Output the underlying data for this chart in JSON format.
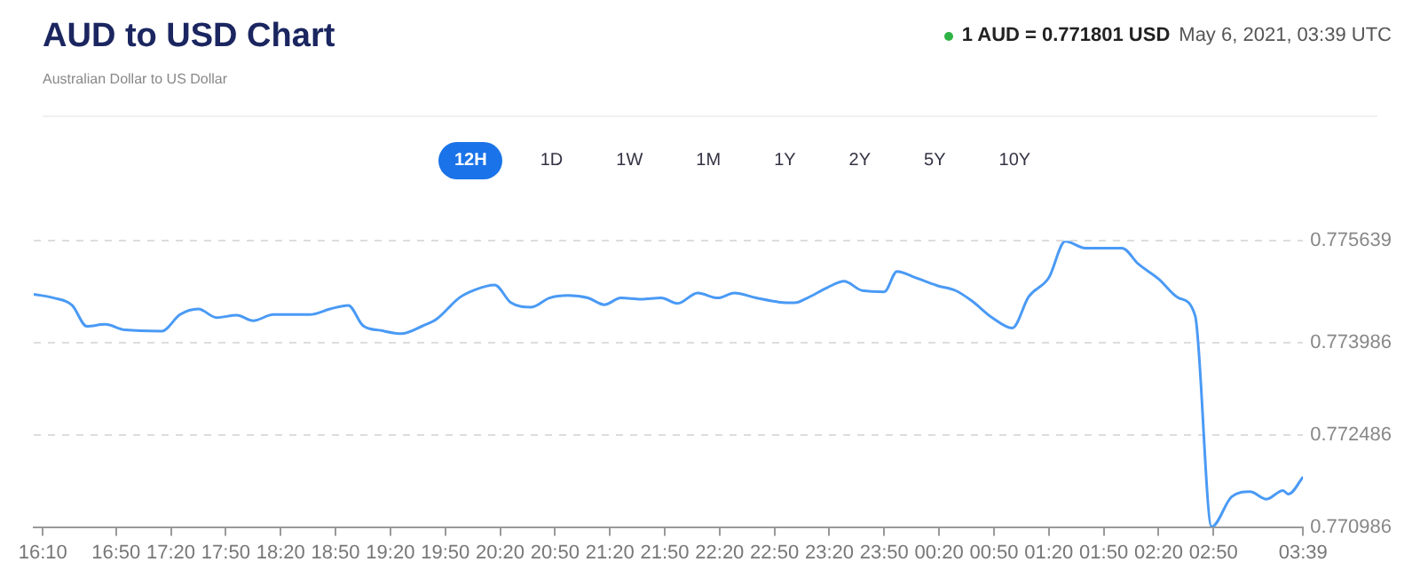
{
  "chart_data": {
    "type": "line",
    "title": "AUD to USD Chart",
    "subtitle": "Australian Dollar to US Dollar",
    "annotations": [
      "1 AUD = 0.771801 USD",
      "May 6, 2021, 03:39 UTC",
      "12H",
      "1D",
      "1W",
      "1M",
      "1Y",
      "2Y",
      "5Y",
      "10Y"
    ],
    "x": [
      "2021-05-05T16:05",
      "2021-05-05T16:16",
      "2021-05-05T16:26",
      "2021-05-05T16:34",
      "2021-05-05T16:44",
      "2021-05-05T16:55",
      "2021-05-05T17:15",
      "2021-05-05T17:25",
      "2021-05-05T17:35",
      "2021-05-05T17:45",
      "2021-05-05T17:56",
      "2021-05-05T18:05",
      "2021-05-05T18:16",
      "2021-05-05T18:36",
      "2021-05-05T18:47",
      "2021-05-05T18:57",
      "2021-05-05T19:05",
      "2021-05-05T19:15",
      "2021-05-05T19:26",
      "2021-05-05T19:38",
      "2021-05-05T19:45",
      "2021-05-05T19:58",
      "2021-05-05T20:06",
      "2021-05-05T20:17",
      "2021-05-05T20:26",
      "2021-05-05T20:37",
      "2021-05-05T20:47",
      "2021-05-05T20:57",
      "2021-05-05T21:08",
      "2021-05-05T21:17",
      "2021-05-05T21:26",
      "2021-05-05T21:37",
      "2021-05-05T21:48",
      "2021-05-05T21:57",
      "2021-05-05T22:08",
      "2021-05-05T22:19",
      "2021-05-05T22:28",
      "2021-05-05T22:40",
      "2021-05-05T22:53",
      "2021-05-05T23:01",
      "2021-05-05T23:08",
      "2021-05-05T23:19",
      "2021-05-05T23:28",
      "2021-05-05T23:38",
      "2021-05-05T23:50",
      "2021-05-05T23:57",
      "2021-05-06T00:07",
      "2021-05-06T00:19",
      "2021-05-06T00:29",
      "2021-05-06T00:38",
      "2021-05-06T00:49",
      "2021-05-06T01:00",
      "2021-05-06T01:09",
      "2021-05-06T01:20",
      "2021-05-06T01:29",
      "2021-05-06T01:40",
      "2021-05-06T02:00",
      "2021-05-06T02:09",
      "2021-05-06T02:20",
      "2021-05-06T02:31",
      "2021-05-06T02:40",
      "2021-05-06T02:49",
      "2021-05-06T03:00",
      "2021-05-06T03:10",
      "2021-05-06T03:19",
      "2021-05-06T03:28",
      "2021-05-06T03:31",
      "2021-05-06T03:39"
    ],
    "series": [
      {
        "color": "#4a9af5",
        "values": [
          0.77477,
          0.77471,
          0.77459,
          0.77425,
          0.77428,
          0.77419,
          0.77417,
          0.77444,
          0.77453,
          0.77439,
          0.77443,
          0.77434,
          0.77444,
          0.77444,
          0.77453,
          0.77459,
          0.77426,
          0.77418,
          0.77413,
          0.77426,
          0.77436,
          0.77472,
          0.77484,
          0.77492,
          0.77463,
          0.77456,
          0.77471,
          0.77475,
          0.77471,
          0.7746,
          0.77471,
          0.77469,
          0.77471,
          0.77462,
          0.77479,
          0.77471,
          0.77479,
          0.77471,
          0.77464,
          0.77463,
          0.77471,
          0.77488,
          0.77498,
          0.77483,
          0.77481,
          0.77514,
          0.77504,
          0.77491,
          0.77483,
          0.77466,
          0.77439,
          0.77422,
          0.77473,
          0.77504,
          0.77563,
          0.77552,
          0.77552,
          0.77526,
          0.77502,
          0.77471,
          0.77442,
          0.77099,
          0.77148,
          0.77156,
          0.77144,
          0.77158,
          0.77152,
          0.7718
        ]
      }
    ],
    "xlim": [
      "2021-05-05T16:05",
      "2021-05-06T03:39"
    ],
    "xticks": [
      {
        "value": "2021-05-05T16:10",
        "label": "16:10"
      },
      {
        "value": "2021-05-05T16:50",
        "label": "16:50"
      },
      {
        "value": "2021-05-05T17:20",
        "label": "17:20"
      },
      {
        "value": "2021-05-05T17:50",
        "label": "17:50"
      },
      {
        "value": "2021-05-05T18:20",
        "label": "18:20"
      },
      {
        "value": "2021-05-05T18:50",
        "label": "18:50"
      },
      {
        "value": "2021-05-05T19:20",
        "label": "19:20"
      },
      {
        "value": "2021-05-05T19:50",
        "label": "19:50"
      },
      {
        "value": "2021-05-05T20:20",
        "label": "20:20"
      },
      {
        "value": "2021-05-05T20:50",
        "label": "20:50"
      },
      {
        "value": "2021-05-05T21:20",
        "label": "21:20"
      },
      {
        "value": "2021-05-05T21:50",
        "label": "21:50"
      },
      {
        "value": "2021-05-05T22:20",
        "label": "22:20"
      },
      {
        "value": "2021-05-05T22:50",
        "label": "22:50"
      },
      {
        "value": "2021-05-05T23:20",
        "label": "23:20"
      },
      {
        "value": "2021-05-05T23:50",
        "label": "23:50"
      },
      {
        "value": "2021-05-06T00:20",
        "label": "00:20"
      },
      {
        "value": "2021-05-06T00:50",
        "label": "00:50"
      },
      {
        "value": "2021-05-06T01:20",
        "label": "01:20"
      },
      {
        "value": "2021-05-06T01:50",
        "label": "01:50"
      },
      {
        "value": "2021-05-06T02:20",
        "label": "02:20"
      },
      {
        "value": "2021-05-06T02:50",
        "label": "02:50"
      },
      {
        "value": "2021-05-06T03:39",
        "label": "03:39"
      }
    ],
    "ylim": [
      0.770986,
      0.775639
    ],
    "yticks": [
      0.770986,
      0.772486,
      0.773986,
      0.775639
    ],
    "grid": "y",
    "marker": "none",
    "line_style": "solid",
    "legend": false
  }
}
